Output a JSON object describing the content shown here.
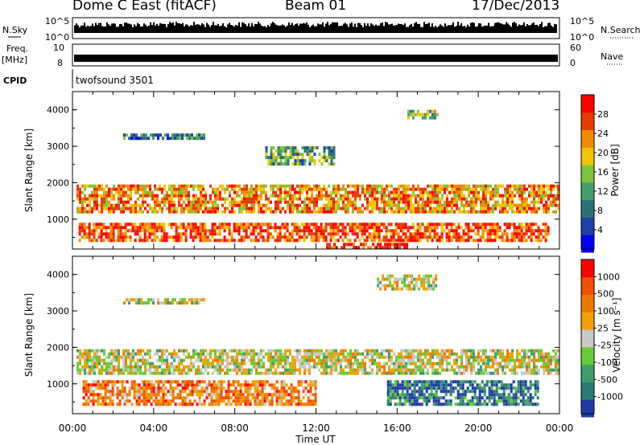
{
  "header": {
    "station": "Dome C East (fitACF)",
    "beam": "Beam 01",
    "date": "17/Dec/2013"
  },
  "strips": {
    "nsky_label": "N.Sky",
    "nsky_ticks": [
      "10^5",
      "10^0"
    ],
    "nsearch_label": "N.Search",
    "nsearch_ticks": [
      "10^5",
      "10^0"
    ],
    "freq_label": "Freq.",
    "freq_unit": "[MHz]",
    "freq_ticks": [
      "10",
      "8"
    ],
    "nave_label": "Nave",
    "nave_ticks": [
      "60",
      "0"
    ],
    "cpid_label": "CPID",
    "cpid_text": "twofsound 3501"
  },
  "chart_data": [
    {
      "type": "heatmap",
      "name": "power",
      "xlabel": "",
      "ylabel": "Slant Range [km]",
      "xlim": [
        0,
        24
      ],
      "ylim": [
        180,
        4500
      ],
      "y_ticks": [
        "4000",
        "3000",
        "2000",
        "1000"
      ],
      "colorbar_label": "Power [dB]",
      "colorbar_ticks": [
        "28",
        "24",
        "20",
        "16",
        "12",
        "8",
        "4"
      ],
      "colorbar_colors": [
        "#0000ff",
        "#1e40a8",
        "#2e6e78",
        "#3fa06a",
        "#7cc63c",
        "#f2c500",
        "#f08a00",
        "#e63c00",
        "#ff0000"
      ],
      "regions": [
        {
          "t0": 0.2,
          "t1": 24,
          "r0": 1200,
          "r1": 1950,
          "level": 6
        },
        {
          "t0": 0.3,
          "t1": 23.5,
          "r0": 350,
          "r1": 900,
          "level": 7
        },
        {
          "t0": 12.5,
          "t1": 16.5,
          "r0": 180,
          "r1": 350,
          "level": 8
        },
        {
          "t0": 2.5,
          "t1": 6.5,
          "r0": 3200,
          "r1": 3350,
          "level": 2
        },
        {
          "t0": 9.5,
          "t1": 13,
          "r0": 2500,
          "r1": 3000,
          "level": 3
        },
        {
          "t0": 16.5,
          "t1": 18,
          "r0": 3700,
          "r1": 4000,
          "level": 4
        }
      ]
    },
    {
      "type": "heatmap",
      "name": "velocity",
      "xlabel": "Time UT",
      "ylabel": "Slant Range [km]",
      "xlim": [
        0,
        24
      ],
      "ylim": [
        180,
        4500
      ],
      "x_ticks": [
        "00:00",
        "04:00",
        "08:00",
        "12:00",
        "16:00",
        "20:00",
        "00:00"
      ],
      "y_ticks": [
        "4000",
        "3000",
        "2000",
        "1000"
      ],
      "colorbar_label": "Velocity [m s⁻¹]",
      "colorbar_ticks": [
        "1000",
        "500",
        "100",
        "25",
        "-25",
        "-100",
        "-500",
        "-1000"
      ],
      "colorbar_colors": [
        "#1f3aa8",
        "#2b7a78",
        "#3f9c6a",
        "#66cc33",
        "#c8c8c4",
        "#f2a000",
        "#f07800",
        "#ee5000",
        "#ff0000"
      ],
      "regions": [
        {
          "t0": 0.2,
          "t1": 24,
          "r0": 1250,
          "r1": 1950,
          "level": 4
        },
        {
          "t0": 0.5,
          "t1": 12,
          "r0": 400,
          "r1": 1100,
          "level": 6
        },
        {
          "t0": 15.5,
          "t1": 23,
          "r0": 400,
          "r1": 1100,
          "level": 1
        },
        {
          "t0": 2.5,
          "t1": 6.5,
          "r0": 3200,
          "r1": 3350,
          "level": 4
        },
        {
          "t0": 15,
          "t1": 18,
          "r0": 3600,
          "r1": 4000,
          "level": 4
        }
      ]
    }
  ]
}
